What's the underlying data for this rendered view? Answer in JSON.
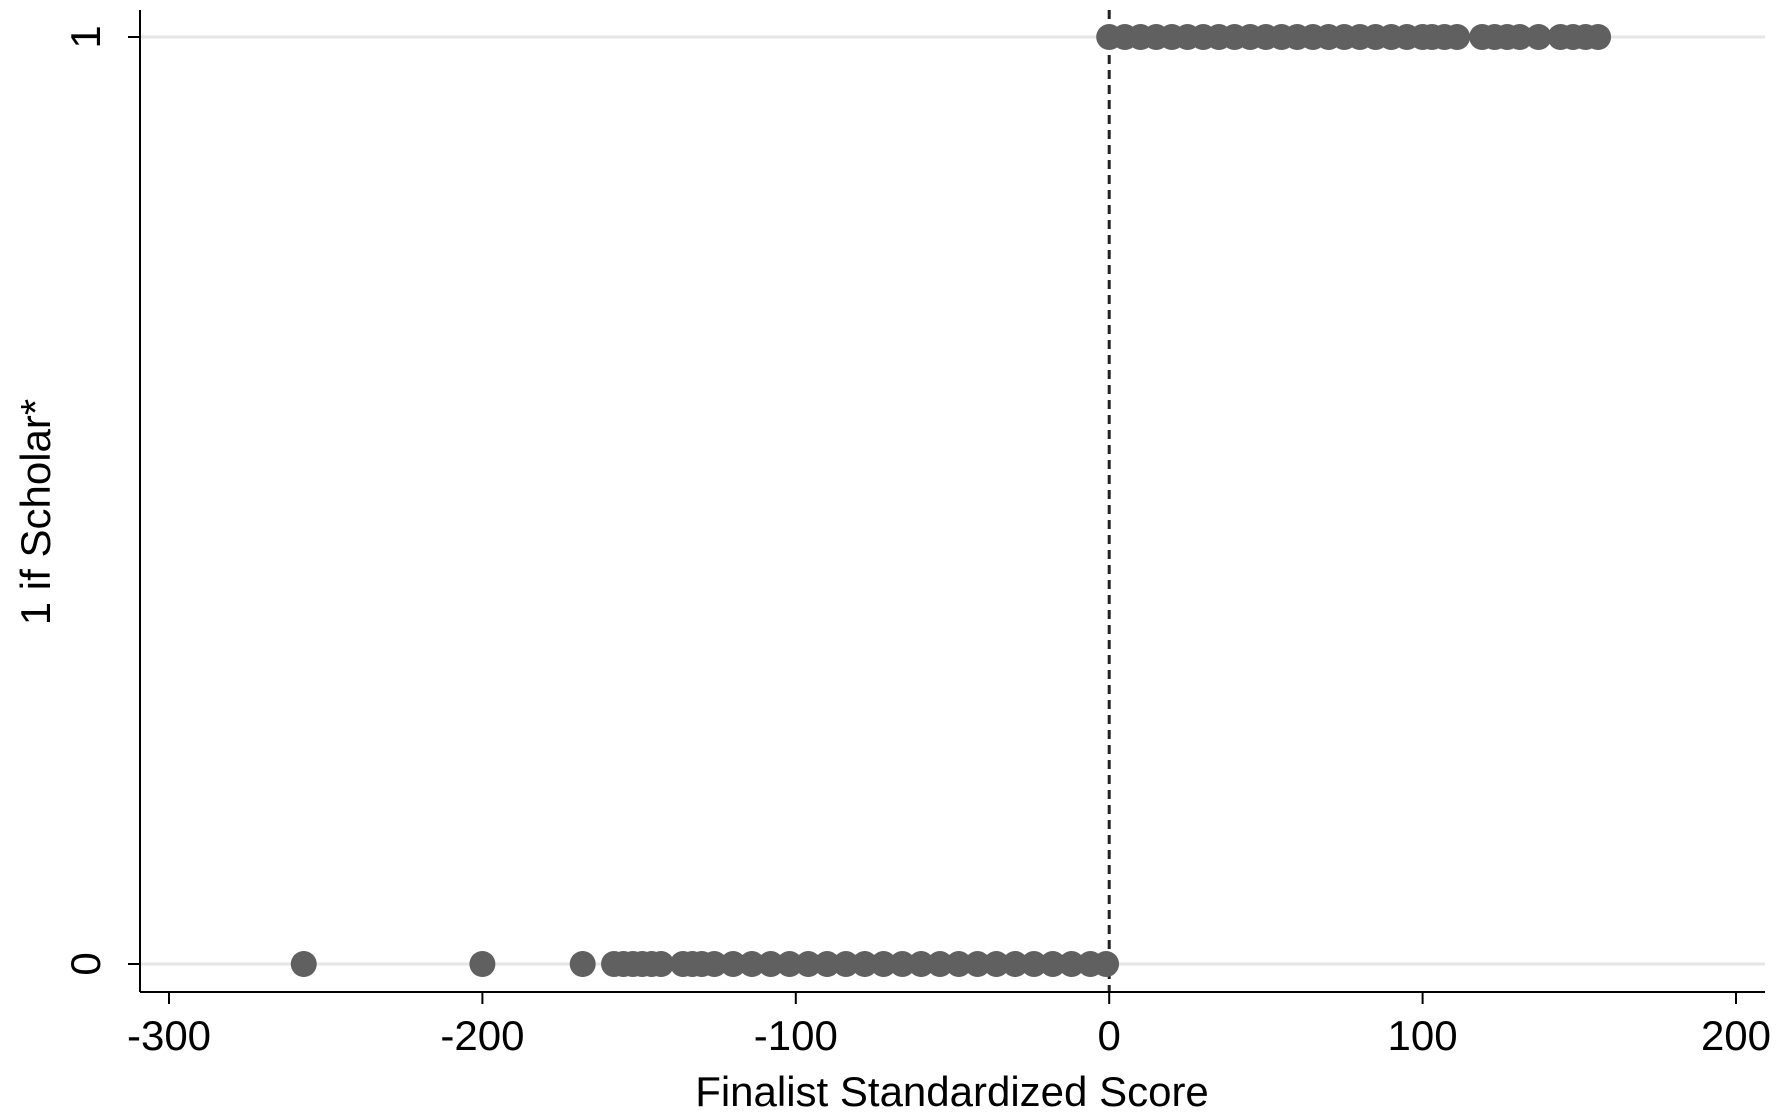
{
  "chart_data": {
    "type": "scatter",
    "title": "",
    "xlabel": "Finalist Standardized Score",
    "ylabel": "1 if Scholar*",
    "xlim": [
      -300,
      200
    ],
    "ylim": [
      0,
      1
    ],
    "x_ticks": [
      -300,
      -200,
      -100,
      0,
      100,
      200
    ],
    "x_tick_labels": [
      "-300",
      "-200",
      "-100",
      "0",
      "100",
      "200"
    ],
    "y_ticks": [
      0,
      1
    ],
    "y_tick_labels": [
      "0",
      "1"
    ],
    "grid": "horizontal at y ticks",
    "reference_line": {
      "x": 0,
      "style": "dashed"
    },
    "colors": {
      "marker": "#606060",
      "grid": "#e6e6e6",
      "axis": "#000000"
    },
    "series": [
      {
        "values": [
          {
            "x": -257,
            "y": 0
          },
          {
            "x": -200,
            "y": 0
          },
          {
            "x": -168,
            "y": 0
          },
          {
            "x": -158,
            "y": 0
          },
          {
            "x": -155,
            "y": 0
          },
          {
            "x": -152,
            "y": 0
          },
          {
            "x": -149,
            "y": 0
          },
          {
            "x": -146,
            "y": 0
          },
          {
            "x": -143,
            "y": 0
          },
          {
            "x": -136,
            "y": 0
          },
          {
            "x": -133,
            "y": 0
          },
          {
            "x": -130,
            "y": 0
          },
          {
            "x": -126,
            "y": 0
          },
          {
            "x": -120,
            "y": 0
          },
          {
            "x": -114,
            "y": 0
          },
          {
            "x": -108,
            "y": 0
          },
          {
            "x": -102,
            "y": 0
          },
          {
            "x": -96,
            "y": 0
          },
          {
            "x": -90,
            "y": 0
          },
          {
            "x": -84,
            "y": 0
          },
          {
            "x": -78,
            "y": 0
          },
          {
            "x": -72,
            "y": 0
          },
          {
            "x": -66,
            "y": 0
          },
          {
            "x": -60,
            "y": 0
          },
          {
            "x": -54,
            "y": 0
          },
          {
            "x": -48,
            "y": 0
          },
          {
            "x": -42,
            "y": 0
          },
          {
            "x": -36,
            "y": 0
          },
          {
            "x": -30,
            "y": 0
          },
          {
            "x": -24,
            "y": 0
          },
          {
            "x": -18,
            "y": 0
          },
          {
            "x": -12,
            "y": 0
          },
          {
            "x": -6,
            "y": 0
          },
          {
            "x": -1,
            "y": 0
          },
          {
            "x": 0,
            "y": 1
          },
          {
            "x": 5,
            "y": 1
          },
          {
            "x": 10,
            "y": 1
          },
          {
            "x": 15,
            "y": 1
          },
          {
            "x": 20,
            "y": 1
          },
          {
            "x": 25,
            "y": 1
          },
          {
            "x": 30,
            "y": 1
          },
          {
            "x": 35,
            "y": 1
          },
          {
            "x": 40,
            "y": 1
          },
          {
            "x": 45,
            "y": 1
          },
          {
            "x": 50,
            "y": 1
          },
          {
            "x": 55,
            "y": 1
          },
          {
            "x": 60,
            "y": 1
          },
          {
            "x": 65,
            "y": 1
          },
          {
            "x": 70,
            "y": 1
          },
          {
            "x": 75,
            "y": 1
          },
          {
            "x": 80,
            "y": 1
          },
          {
            "x": 85,
            "y": 1
          },
          {
            "x": 90,
            "y": 1
          },
          {
            "x": 95,
            "y": 1
          },
          {
            "x": 100,
            "y": 1
          },
          {
            "x": 103,
            "y": 1
          },
          {
            "x": 107,
            "y": 1
          },
          {
            "x": 111,
            "y": 1
          },
          {
            "x": 119,
            "y": 1
          },
          {
            "x": 123,
            "y": 1
          },
          {
            "x": 127,
            "y": 1
          },
          {
            "x": 131,
            "y": 1
          },
          {
            "x": 137,
            "y": 1
          },
          {
            "x": 144,
            "y": 1
          },
          {
            "x": 148,
            "y": 1
          },
          {
            "x": 152,
            "y": 1
          },
          {
            "x": 156,
            "y": 1
          }
        ]
      }
    ]
  }
}
